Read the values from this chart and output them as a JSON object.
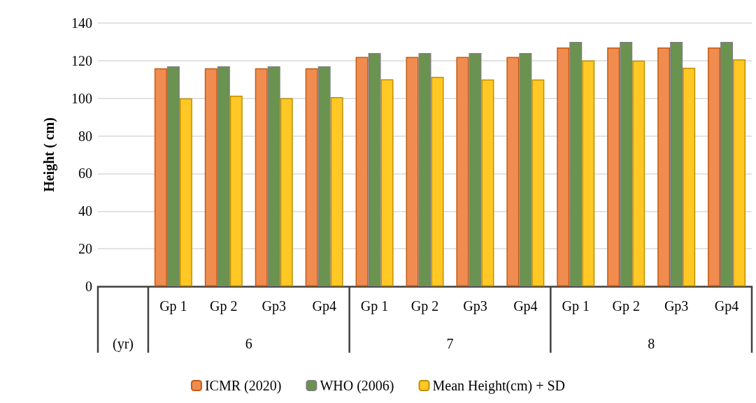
{
  "chart_data": {
    "type": "bar",
    "ylabel": "Height ( cm)",
    "categories": [
      null,
      "Gp 1",
      "Gp 2",
      "Gp3",
      "Gp4",
      "Gp 1",
      "Gp 2",
      "Gp3",
      "Gp4",
      "Gp 1",
      "Gp 2",
      "Gp3",
      "Gp4"
    ],
    "series": [
      {
        "name": "ICMR (2020)",
        "color": "#f08c4f",
        "values": [
          null,
          116,
          116,
          116,
          116,
          122,
          122,
          122,
          122,
          127,
          127,
          127,
          127
        ]
      },
      {
        "name": "WHO (2006)",
        "color": "#6a9350",
        "values": [
          null,
          117,
          117,
          117,
          117,
          124,
          124,
          124,
          124,
          130,
          130,
          130,
          130
        ]
      },
      {
        "name": "Mean Height(cm) + SD",
        "color": "#ffc824",
        "values": [
          null,
          100,
          101.4,
          100.1,
          100.6,
          110.1,
          111.4,
          110,
          110,
          120.1,
          120,
          116.2,
          120.7
        ]
      }
    ],
    "annotations": [
      "(yr)",
      "6",
      "7",
      "8"
    ],
    "ylim": [
      0,
      140
    ],
    "yticks": [
      0,
      20,
      40,
      60,
      80,
      100,
      120,
      140
    ],
    "grid": "y",
    "legend": "bottom"
  }
}
